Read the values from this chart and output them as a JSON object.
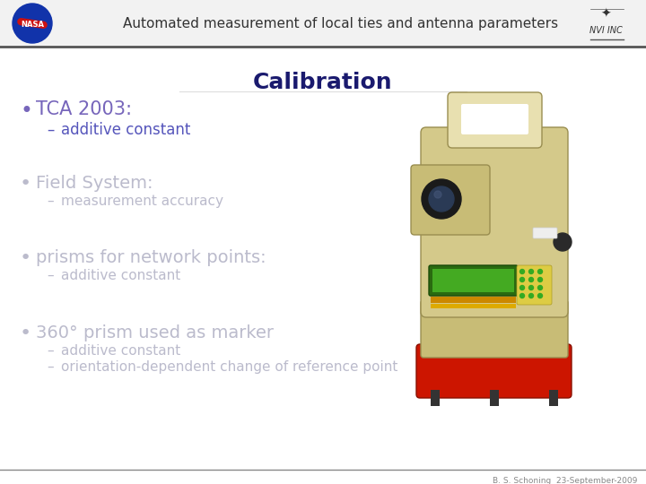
{
  "title_bar_text": "Automated measurement of local ties and antenna parameters",
  "slide_bg": "#ffffff",
  "section_title": "Calibration",
  "section_title_color": "#1a1a6e",
  "section_title_fontsize": 18,
  "bullet_color_active": "#7766bb",
  "bullet_color_inactive": "#bbbbcc",
  "dash_color_active": "#5555bb",
  "dash_color_inactive": "#bbbbcc",
  "bullet1": "TCA 2003:",
  "sub1": [
    "additive constant"
  ],
  "bullet2": "Field System:",
  "sub2": [
    "measurement accuracy"
  ],
  "bullet3": "prisms for network points:",
  "sub3": [
    "additive constant"
  ],
  "bullet4": "360° prism used as marker",
  "sub4": [
    "additive constant",
    "orientation-dependent change of reference point"
  ],
  "footer_text": "B. S. Schoning  23-September-2009",
  "footer_color": "#888888",
  "footer_fontsize": 6.5,
  "header_bg": "#f0f0f0",
  "header_text_color": "#333333",
  "header_fontsize": 11
}
